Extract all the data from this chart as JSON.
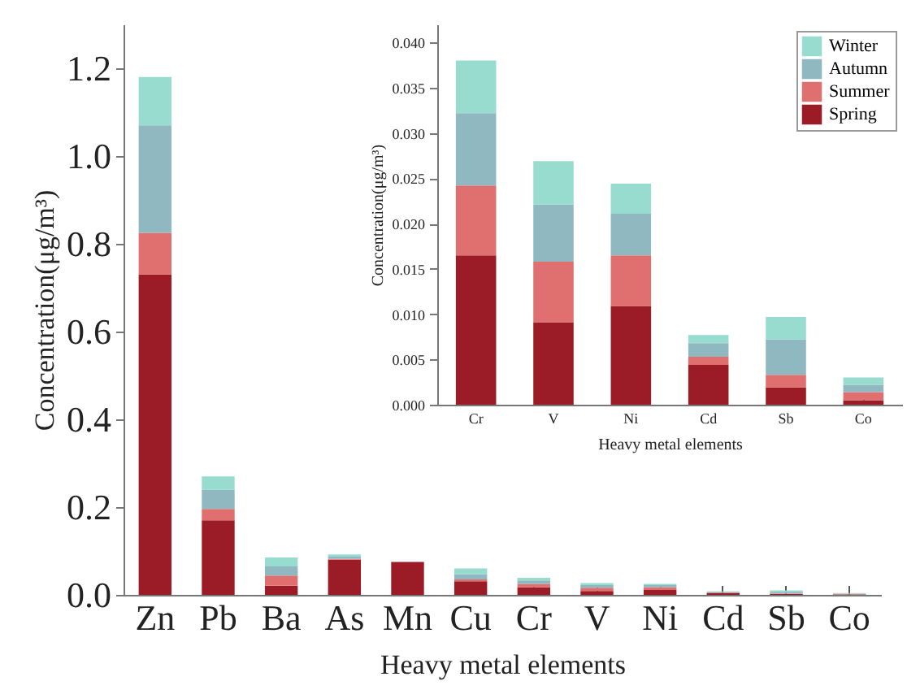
{
  "chart_data": [
    {
      "type": "bar",
      "xlabel": "Heavy metal elements",
      "ylabel": "Concentration(μg/m³)",
      "stacked": true,
      "categories": [
        "Zn",
        "Pb",
        "Ba",
        "As",
        "Mn",
        "Cu",
        "Cr",
        "V",
        "Ni",
        "Cd",
        "Sb",
        "Co"
      ],
      "series": [
        {
          "color": "#9b1c26",
          "values": [
            0.73,
            0.17,
            0.021,
            0.08,
            0.075,
            0.031,
            0.017,
            0.009,
            0.011,
            0.004,
            0.002,
            0.001
          ]
        },
        {
          "color": "#e07070",
          "values": [
            0.095,
            0.026,
            0.023,
            0.002,
            0,
            0.004,
            0.008,
            0.007,
            0.006,
            0.001,
            0.001,
            0.001
          ]
        },
        {
          "color": "#8fb8c0",
          "values": [
            0.245,
            0.044,
            0.021,
            0.005,
            0,
            0.012,
            0.008,
            0.006,
            0.005,
            0.002,
            0.004,
            0.001
          ]
        },
        {
          "color": "#98dcd0",
          "values": [
            0.11,
            0.03,
            0.02,
            0.005,
            0,
            0.013,
            0.006,
            0.005,
            0.003,
            0.001,
            0.003,
            0.001
          ]
        }
      ],
      "ylim": [
        0,
        1.3
      ],
      "yticks": [
        {
          "value": 0,
          "label": "0.0"
        },
        {
          "value": 0.2,
          "label": "0.2"
        },
        {
          "value": 0.4,
          "label": "0.4"
        },
        {
          "value": 0.6,
          "label": "0.6"
        },
        {
          "value": 0.8,
          "label": "0.8"
        },
        {
          "value": 1,
          "label": "1.0"
        },
        {
          "value": 1.2,
          "label": "1.2"
        }
      ]
    },
    {
      "type": "bar",
      "xlabel": "Heavy metal elements",
      "ylabel": "Concentration(μg/m³)",
      "stacked": true,
      "legend": "top right",
      "categories": [
        "Cr",
        "V",
        "Ni",
        "Cd",
        "Sb",
        "Co"
      ],
      "series": [
        {
          "name": "Spring",
          "color": "#9b1c26",
          "values": [
            0.0165,
            0.0091,
            0.0109,
            0.0044,
            0.0019,
            0.0005
          ]
        },
        {
          "name": "Summer",
          "color": "#e07070",
          "values": [
            0.0077,
            0.0067,
            0.0056,
            0.0009,
            0.0014,
            0.0009
          ]
        },
        {
          "name": "Autumn",
          "color": "#8fb8c0",
          "values": [
            0.008,
            0.0063,
            0.0046,
            0.0015,
            0.0039,
            0.0008
          ]
        },
        {
          "name": "Winter",
          "color": "#98dcd0",
          "values": [
            0.0058,
            0.0048,
            0.0033,
            0.0009,
            0.0025,
            0.0008
          ]
        }
      ],
      "ylim": [
        0,
        0.042
      ],
      "yticks": [
        {
          "value": 0,
          "label": "0.000"
        },
        {
          "value": 0.005,
          "label": "0.005"
        },
        {
          "value": 0.01,
          "label": "0.010"
        },
        {
          "value": 0.015,
          "label": "0.015"
        },
        {
          "value": 0.02,
          "label": "0.020"
        },
        {
          "value": 0.025,
          "label": "0.025"
        },
        {
          "value": 0.03,
          "label": "0.030"
        },
        {
          "value": 0.035,
          "label": "0.035"
        },
        {
          "value": 0.04,
          "label": "0.040"
        }
      ]
    }
  ]
}
